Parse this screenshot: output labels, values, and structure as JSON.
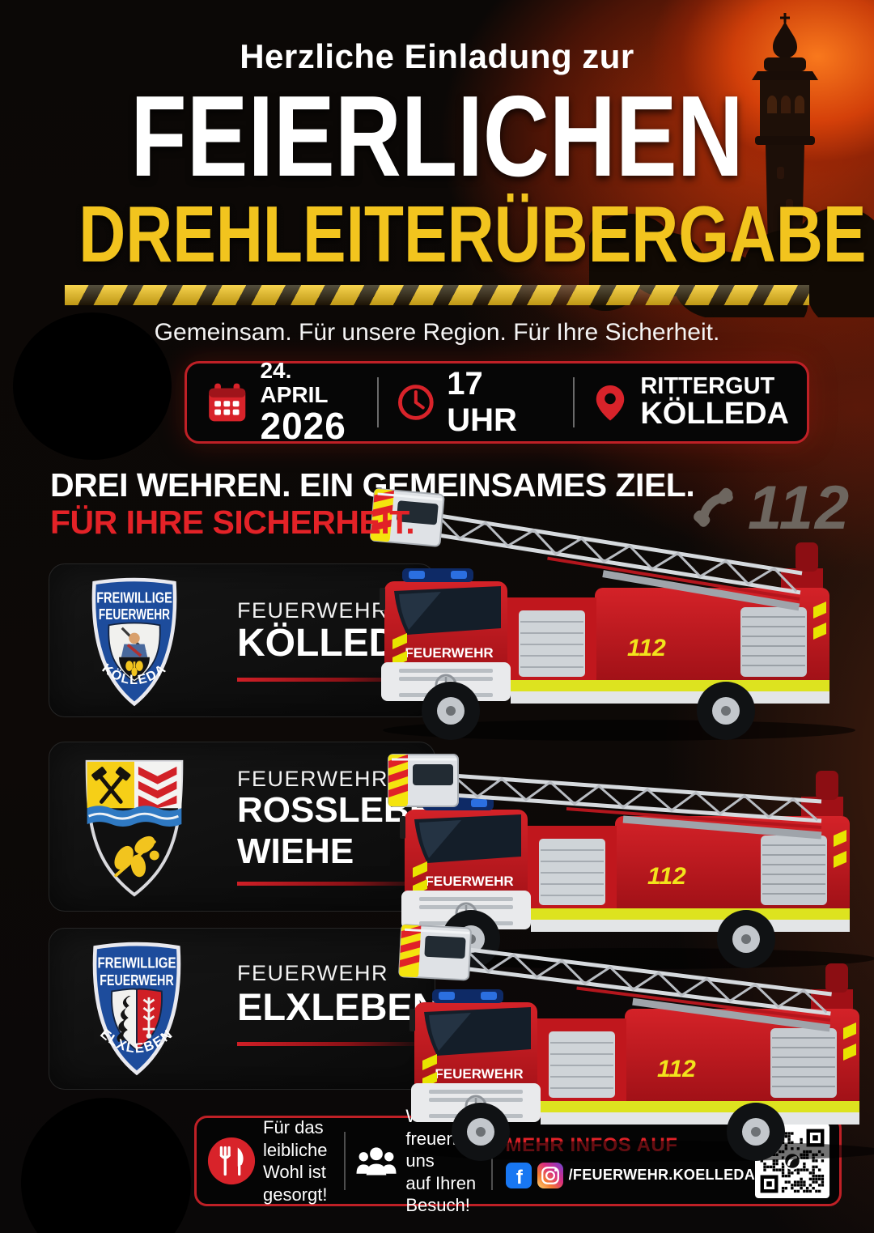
{
  "poster": {
    "header": {
      "intro": "Herzliche Einladung zur",
      "title_line1": "FEIERLICHEN",
      "title_line2": "DREHLEITERÜBERGABE",
      "subtitle": "Gemeinsam. Für unsere Region. Für Ihre Sicherheit."
    },
    "event_info": {
      "date_line1": "24. APRIL",
      "date_line2": "2026",
      "time": "17 UHR",
      "location_line1": "RITTERGUT",
      "location_line2": "KÖLLEDA"
    },
    "mission": {
      "line_white": "DREI WEHREN. EIN GEMEINSAMES ZIEL.",
      "line_red": "FÜR IHRE SICHERHEIT.",
      "emergency_number": "112"
    },
    "departments": [
      {
        "eyebrow": "FEUERWEHR",
        "name_line1": "KÖLLEDA",
        "name_line2": ""
      },
      {
        "eyebrow": "FEUERWEHR",
        "name_line1": "ROSSLEBEN-",
        "name_line2": "WIEHE"
      },
      {
        "eyebrow": "FEUERWEHR",
        "name_line1": "ELXLEBEN",
        "name_line2": ""
      }
    ],
    "crests": {
      "koelleda": {
        "top1": "FREIWILLIGE",
        "top2": "FEUERWEHR",
        "bottom": "KÖLLEDA"
      },
      "elxleben": {
        "top1": "FREIWILLIGE",
        "top2": "FEUERWEHR",
        "bottom": "ELXLEBEN"
      }
    },
    "truck": {
      "cab_label": "FEUERWEHR",
      "number": "112"
    },
    "footer": {
      "food_line1": "Für das leibliche",
      "food_line2": "Wohl ist gesorgt!",
      "visit_line1": "Wir freuen uns",
      "visit_line2": "auf Ihren Besuch!",
      "more_info": "MEHR INFOS AUF",
      "social_handle": "/FEUERWEHR.KOELLEDA",
      "facebook_glyph": "f"
    },
    "icons": {
      "calendar": "calendar-grid",
      "clock": "clock-face",
      "location": "map-pin",
      "emergency": "phone-handset",
      "food": "fork-and-knife",
      "visitors": "people-group",
      "facebook": "facebook-f",
      "instagram": "instagram-camera",
      "qr": "qr-code-with-phone-logo"
    },
    "colors": {
      "accent_red": "#d8232a",
      "title_yellow": "#f2c41e",
      "crest_blue": "#1d4c9c",
      "facebook_blue": "#1877f2"
    }
  }
}
